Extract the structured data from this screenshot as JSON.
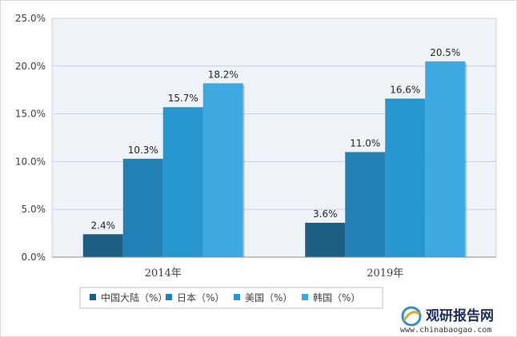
{
  "chart_data": {
    "type": "bar",
    "categories": [
      "2014年",
      "2019年"
    ],
    "series": [
      {
        "name": "中国大陆（%）",
        "values": [
          2.4,
          3.6
        ],
        "color": "#1e5f84"
      },
      {
        "name": "日本（%）",
        "values": [
          10.3,
          11.0
        ],
        "color": "#2280b5"
      },
      {
        "name": "美国（%）",
        "values": [
          15.7,
          16.6
        ],
        "color": "#2896cf"
      },
      {
        "name": "韩国（%）",
        "values": [
          18.2,
          20.5
        ],
        "color": "#3ea9e0"
      }
    ],
    "data_labels": [
      [
        "2.4%",
        "3.6%"
      ],
      [
        "10.3%",
        "11.0%"
      ],
      [
        "15.7%",
        "16.6%"
      ],
      [
        "18.2%",
        "20.5%"
      ]
    ],
    "y_ticks": [
      "0.0%",
      "5.0%",
      "10.0%",
      "15.0%",
      "20.0%",
      "25.0%"
    ],
    "ylim": [
      0,
      25
    ],
    "grid": true,
    "legend_position": "bottom",
    "plot_background": "#eef3f8"
  },
  "watermark": {
    "brand": "观研报告网",
    "url": "www.chinabaogao.com"
  }
}
